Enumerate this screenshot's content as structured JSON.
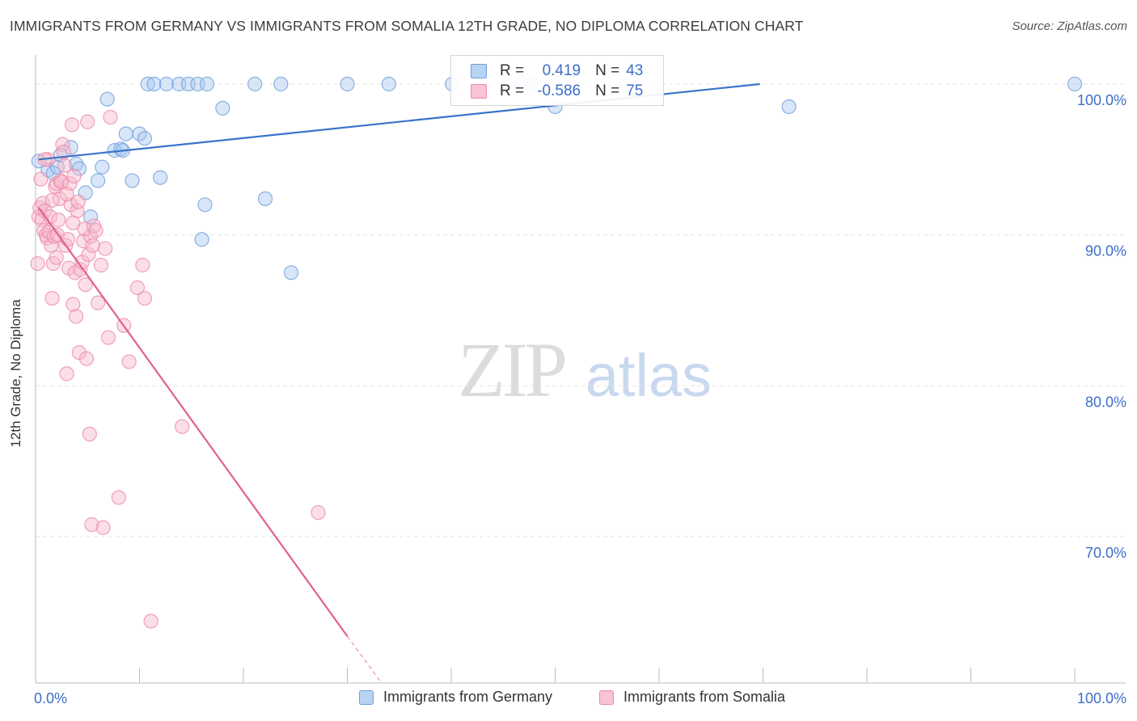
{
  "title": "IMMIGRANTS FROM GERMANY VS IMMIGRANTS FROM SOMALIA 12TH GRADE, NO DIPLOMA CORRELATION CHART",
  "source": "Source: ZipAtlas.com",
  "watermark": {
    "zip": "ZIP",
    "atlas": "atlas"
  },
  "legend": {
    "rows": [
      {
        "r_label": "R =",
        "r_value": "0.419",
        "n_label": "N =",
        "n_value": "43"
      },
      {
        "r_label": "R =",
        "r_value": "-0.586",
        "n_label": "N =",
        "n_value": "75"
      }
    ]
  },
  "bottom_legend": [
    "Immigrants from Germany",
    "Immigrants from Somalia"
  ],
  "colors": {
    "germany_fill": "#a9c8f0",
    "germany_stroke": "#6f9fdc",
    "germany_line": "#3a74c8",
    "somalia_fill": "#f7b8cb",
    "somalia_stroke": "#ec8aaa",
    "somalia_line": "#e0608f",
    "axis_text": "#3b6ec9",
    "grid": "#e3e3e3"
  },
  "chart_data": {
    "type": "scatter",
    "title": "IMMIGRANTS FROM GERMANY VS IMMIGRANTS FROM SOMALIA 12TH GRADE, NO DIPLOMA CORRELATION CHART",
    "xlabel": "",
    "ylabel": "12th Grade, No Diploma",
    "xlim": [
      0,
      100
    ],
    "ylim": [
      60.3,
      103.0
    ],
    "x_tick_labels": [
      "0.0%",
      "100.0%"
    ],
    "y_ticks": [
      70,
      80,
      90,
      100
    ],
    "y_tick_labels": [
      "70.0%",
      "80.0%",
      "90.0%",
      "100.0%"
    ],
    "grid": true,
    "series": [
      {
        "name": "Immigrants from Germany",
        "r": 0.419,
        "n": 43,
        "trend": {
          "x": [
            0.3,
            69.7
          ],
          "y": [
            95.0,
            100.0
          ]
        },
        "points": [
          [
            0.3,
            94.9
          ],
          [
            1.2,
            94.3
          ],
          [
            1.7,
            94.1
          ],
          [
            2.1,
            94.5
          ],
          [
            2.4,
            95.3
          ],
          [
            3.4,
            95.8
          ],
          [
            3.9,
            94.7
          ],
          [
            4.2,
            94.4
          ],
          [
            4.8,
            92.8
          ],
          [
            5.3,
            91.2
          ],
          [
            6.0,
            93.6
          ],
          [
            6.4,
            94.5
          ],
          [
            6.9,
            99.0
          ],
          [
            7.6,
            95.6
          ],
          [
            8.2,
            95.7
          ],
          [
            8.4,
            95.6
          ],
          [
            8.7,
            96.7
          ],
          [
            9.3,
            93.6
          ],
          [
            10.0,
            96.7
          ],
          [
            10.5,
            96.4
          ],
          [
            10.8,
            100.0
          ],
          [
            11.4,
            100.0
          ],
          [
            12.0,
            93.8
          ],
          [
            12.6,
            100.0
          ],
          [
            13.8,
            100.0
          ],
          [
            14.7,
            100.0
          ],
          [
            15.6,
            100.0
          ],
          [
            16.3,
            92.0
          ],
          [
            16.5,
            100.0
          ],
          [
            16.0,
            89.7
          ],
          [
            18.0,
            98.4
          ],
          [
            21.1,
            100.0
          ],
          [
            22.1,
            92.4
          ],
          [
            23.6,
            100.0
          ],
          [
            24.6,
            87.5
          ],
          [
            30.0,
            100.0
          ],
          [
            34.0,
            100.0
          ],
          [
            40.1,
            100.0
          ],
          [
            46.7,
            100.0
          ],
          [
            47.7,
            100.0
          ],
          [
            50.0,
            98.5
          ],
          [
            72.5,
            98.5
          ],
          [
            100.0,
            100.0
          ]
        ]
      },
      {
        "name": "Immigrants from Somalia",
        "r": -0.586,
        "n": 75,
        "trend": {
          "x": [
            0.3,
            30.0
          ],
          "y": [
            91.8,
            63.4
          ],
          "dashed_to": {
            "x": 33.3,
            "y": 60.3
          }
        },
        "points": [
          [
            0.2,
            88.1
          ],
          [
            0.3,
            91.2
          ],
          [
            0.4,
            91.8
          ],
          [
            0.5,
            93.7
          ],
          [
            0.6,
            91.0
          ],
          [
            0.7,
            92.1
          ],
          [
            0.8,
            90.3
          ],
          [
            0.9,
            91.6
          ],
          [
            1.0,
            90.0
          ],
          [
            1.1,
            89.8
          ],
          [
            1.2,
            95.0
          ],
          [
            1.3,
            90.2
          ],
          [
            1.4,
            91.2
          ],
          [
            1.5,
            89.3
          ],
          [
            1.6,
            85.8
          ],
          [
            1.7,
            88.1
          ],
          [
            1.8,
            89.9
          ],
          [
            1.9,
            93.2
          ],
          [
            2.0,
            93.4
          ],
          [
            2.1,
            90.0
          ],
          [
            2.2,
            91.0
          ],
          [
            2.3,
            92.4
          ],
          [
            2.4,
            93.6
          ],
          [
            2.5,
            93.5
          ],
          [
            2.6,
            96.0
          ],
          [
            2.7,
            95.5
          ],
          [
            2.8,
            94.6
          ],
          [
            2.9,
            89.3
          ],
          [
            3.0,
            80.8
          ],
          [
            3.1,
            89.7
          ],
          [
            3.2,
            87.8
          ],
          [
            3.3,
            93.4
          ],
          [
            3.4,
            92.0
          ],
          [
            3.5,
            97.3
          ],
          [
            3.6,
            85.4
          ],
          [
            3.7,
            93.9
          ],
          [
            3.8,
            87.5
          ],
          [
            3.9,
            84.6
          ],
          [
            4.0,
            91.6
          ],
          [
            4.1,
            92.2
          ],
          [
            4.2,
            82.2
          ],
          [
            4.3,
            87.7
          ],
          [
            4.5,
            88.2
          ],
          [
            4.6,
            89.6
          ],
          [
            4.7,
            90.4
          ],
          [
            4.8,
            86.7
          ],
          [
            4.9,
            81.8
          ],
          [
            5.0,
            97.5
          ],
          [
            5.1,
            88.7
          ],
          [
            5.2,
            76.8
          ],
          [
            5.3,
            89.9
          ],
          [
            5.4,
            70.8
          ],
          [
            5.5,
            89.3
          ],
          [
            5.6,
            90.6
          ],
          [
            5.8,
            90.3
          ],
          [
            6.0,
            85.5
          ],
          [
            6.3,
            88.0
          ],
          [
            6.5,
            70.6
          ],
          [
            7.0,
            83.2
          ],
          [
            7.2,
            97.8
          ],
          [
            8.0,
            72.6
          ],
          [
            8.5,
            84.0
          ],
          [
            9.0,
            81.6
          ],
          [
            9.8,
            86.5
          ],
          [
            10.5,
            85.8
          ],
          [
            10.3,
            88.0
          ],
          [
            11.1,
            64.4
          ],
          [
            14.1,
            77.3
          ],
          [
            27.2,
            71.6
          ],
          [
            0.9,
            95.0
          ],
          [
            1.6,
            92.3
          ],
          [
            2.0,
            88.5
          ],
          [
            3.0,
            92.7
          ],
          [
            3.6,
            90.8
          ],
          [
            6.7,
            89.1
          ]
        ]
      }
    ]
  }
}
